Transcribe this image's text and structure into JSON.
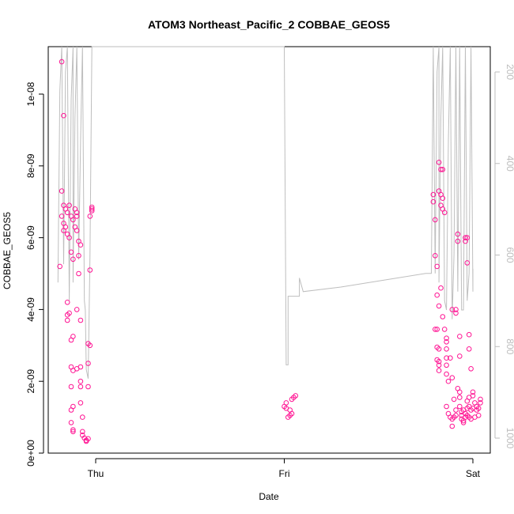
{
  "chart_data": {
    "type": "scatter",
    "title": "ATOM3 Northeast_Pacific_2 COBBAE_GEOS5",
    "xlabel": "Date",
    "ylabel": "COBBAE_GEOS5",
    "x_ticks": [
      "Thu",
      "Fri",
      "Sat"
    ],
    "y_ticks": [
      "0e+00",
      "2e-09",
      "4e-09",
      "6e-09",
      "8e-09",
      "1e-08"
    ],
    "y2_ticks": [
      "200",
      "400",
      "600",
      "800",
      "1000"
    ],
    "xlim_days": [
      -0.2,
      2.0
    ],
    "ylim": [
      0,
      1.13e-08
    ],
    "y2lim": [
      1020,
      140
    ],
    "y2_reversed": true,
    "grid": false,
    "colors": {
      "points": "#ff1493",
      "altitude_line": "#bebebe",
      "right_axis": "#bdbdbd"
    },
    "series": [
      {
        "marker": "open-circle",
        "points": [
          [
            -0.18,
            1.09e-08
          ],
          [
            -0.17,
            9.4e-09
          ],
          [
            -0.18,
            7.3e-09
          ],
          [
            -0.17,
            6.9e-09
          ],
          [
            -0.16,
            6.8e-09
          ],
          [
            -0.15,
            6.7e-09
          ],
          [
            -0.18,
            6.6e-09
          ],
          [
            -0.17,
            6.4e-09
          ],
          [
            -0.16,
            6.3e-09
          ],
          [
            -0.17,
            6.2e-09
          ],
          [
            -0.15,
            6.1e-09
          ],
          [
            -0.14,
            6.9e-09
          ],
          [
            -0.13,
            6.6e-09
          ],
          [
            -0.12,
            6.5e-09
          ],
          [
            -0.14,
            6e-09
          ],
          [
            -0.13,
            5.6e-09
          ],
          [
            -0.12,
            5.4e-09
          ],
          [
            -0.19,
            5.2e-09
          ],
          [
            -0.15,
            4.2e-09
          ],
          [
            -0.15,
            3.85e-09
          ],
          [
            -0.15,
            3.7e-09
          ],
          [
            -0.14,
            3.9e-09
          ],
          [
            -0.13,
            3.15e-09
          ],
          [
            -0.12,
            3.25e-09
          ],
          [
            -0.13,
            2.4e-09
          ],
          [
            -0.12,
            2.3e-09
          ],
          [
            -0.13,
            1.85e-09
          ],
          [
            -0.12,
            1.3e-09
          ],
          [
            -0.13,
            1.2e-09
          ],
          [
            -0.13,
            8.5e-10
          ],
          [
            -0.12,
            6.5e-10
          ],
          [
            -0.12,
            6e-10
          ],
          [
            -0.11,
            6.8e-09
          ],
          [
            -0.1,
            6.7e-09
          ],
          [
            -0.1,
            6.6e-09
          ],
          [
            -0.11,
            6.3e-09
          ],
          [
            -0.1,
            6.2e-09
          ],
          [
            -0.09,
            5.9e-09
          ],
          [
            -0.09,
            5.5e-09
          ],
          [
            -0.09,
            5e-09
          ],
          [
            -0.08,
            5.8e-09
          ],
          [
            -0.1,
            4e-09
          ],
          [
            -0.08,
            3.7e-09
          ],
          [
            -0.1,
            2.35e-09
          ],
          [
            -0.08,
            2.4e-09
          ],
          [
            -0.08,
            2e-09
          ],
          [
            -0.08,
            1.85e-09
          ],
          [
            -0.08,
            1.4e-09
          ],
          [
            -0.07,
            1e-09
          ],
          [
            -0.07,
            6e-10
          ],
          [
            -0.07,
            5e-10
          ],
          [
            -0.06,
            4.2e-10
          ],
          [
            -0.05,
            3.6e-10
          ],
          [
            -0.05,
            3.3e-10
          ],
          [
            -0.04,
            4e-10
          ],
          [
            -0.04,
            2.5e-09
          ],
          [
            -0.03,
            3e-09
          ],
          [
            -0.04,
            3.05e-09
          ],
          [
            -0.04,
            1.85e-09
          ],
          [
            -0.03,
            5.1e-09
          ],
          [
            -0.02,
            6.8e-09
          ],
          [
            -0.02,
            6.85e-09
          ],
          [
            -0.02,
            6.75e-09
          ],
          [
            -0.03,
            6.6e-09
          ],
          [
            1.0,
            1.3e-09
          ],
          [
            1.01,
            1.4e-09
          ],
          [
            1.01,
            1.25e-09
          ],
          [
            1.02,
            1e-09
          ],
          [
            1.03,
            1.05e-09
          ],
          [
            1.04,
            1.1e-09
          ],
          [
            1.04,
            1.5e-09
          ],
          [
            1.05,
            1.55e-09
          ],
          [
            1.06,
            1.6e-09
          ],
          [
            1.03,
            1.2e-09
          ],
          [
            1.79,
            7.2e-09
          ],
          [
            1.79,
            7e-09
          ],
          [
            1.8,
            6.5e-09
          ],
          [
            1.8,
            5.5e-09
          ],
          [
            1.81,
            5.2e-09
          ],
          [
            1.82,
            8.1e-09
          ],
          [
            1.83,
            7.9e-09
          ],
          [
            1.84,
            7.9e-09
          ],
          [
            1.82,
            7.3e-09
          ],
          [
            1.83,
            7.2e-09
          ],
          [
            1.84,
            7.1e-09
          ],
          [
            1.83,
            6.9e-09
          ],
          [
            1.84,
            6.8e-09
          ],
          [
            1.85,
            6.7e-09
          ],
          [
            1.83,
            4.6e-09
          ],
          [
            1.81,
            4.4e-09
          ],
          [
            1.82,
            4.1e-09
          ],
          [
            1.8,
            3.45e-09
          ],
          [
            1.81,
            3.45e-09
          ],
          [
            1.81,
            2.95e-09
          ],
          [
            1.82,
            2.9e-09
          ],
          [
            1.81,
            2.6e-09
          ],
          [
            1.82,
            2.55e-09
          ],
          [
            1.82,
            2.45e-09
          ],
          [
            1.82,
            2.3e-09
          ],
          [
            1.84,
            3.8e-09
          ],
          [
            1.85,
            3.45e-09
          ],
          [
            1.86,
            3.1e-09
          ],
          [
            1.86,
            3.2e-09
          ],
          [
            1.86,
            2.9e-09
          ],
          [
            1.86,
            2.65e-09
          ],
          [
            1.86,
            2.45e-09
          ],
          [
            1.86,
            2.2e-09
          ],
          [
            1.87,
            2e-09
          ],
          [
            1.86,
            1.3e-09
          ],
          [
            1.87,
            1.1e-09
          ],
          [
            1.88,
            1e-09
          ],
          [
            1.89,
            9.5e-10
          ],
          [
            1.89,
            7.5e-10
          ],
          [
            1.9,
            1e-09
          ],
          [
            1.91,
            1.05e-09
          ],
          [
            1.9,
            1.5e-09
          ],
          [
            1.91,
            1.2e-09
          ],
          [
            1.88,
            2.65e-09
          ],
          [
            1.89,
            2.1e-09
          ],
          [
            1.89,
            4e-09
          ],
          [
            1.92,
            1.8e-09
          ],
          [
            1.93,
            1.7e-09
          ],
          [
            1.93,
            1.55e-09
          ],
          [
            1.93,
            1.3e-09
          ],
          [
            1.94,
            1.15e-09
          ],
          [
            1.94,
            9.5e-10
          ],
          [
            1.95,
            9e-10
          ],
          [
            1.95,
            8.5e-10
          ],
          [
            1.94,
            1.05e-09
          ],
          [
            1.96,
            1.1e-09
          ],
          [
            1.96,
            1e-09
          ],
          [
            1.95,
            1.2e-09
          ],
          [
            1.97,
            1.25e-09
          ],
          [
            1.97,
            1.45e-09
          ],
          [
            1.97,
            1.05e-09
          ],
          [
            1.98,
            1e-09
          ],
          [
            1.98,
            1.3e-09
          ],
          [
            1.98,
            1.55e-09
          ],
          [
            1.99,
            1.2e-09
          ],
          [
            1.99,
            9.5e-10
          ],
          [
            1.92,
            6.1e-09
          ],
          [
            1.92,
            5.9e-09
          ],
          [
            1.91,
            4e-09
          ],
          [
            1.91,
            3.9e-09
          ],
          [
            1.93,
            3.25e-09
          ],
          [
            1.93,
            2.7e-09
          ],
          [
            1.96,
            6e-09
          ],
          [
            1.96,
            5.9e-09
          ],
          [
            1.97,
            6e-09
          ],
          [
            1.97,
            5.3e-09
          ],
          [
            1.98,
            3.3e-09
          ],
          [
            1.98,
            2.9e-09
          ],
          [
            1.99,
            2.35e-09
          ],
          [
            2.0,
            1.7e-09
          ],
          [
            2.0,
            1.6e-09
          ],
          [
            2.01,
            1.4e-09
          ],
          [
            2.02,
            1.3e-09
          ],
          [
            2.02,
            1.2e-09
          ],
          [
            2.03,
            1.05e-09
          ],
          [
            2.03,
            1.25e-09
          ],
          [
            2.04,
            1.5e-09
          ],
          [
            2.04,
            1.4e-09
          ],
          [
            2.0,
            1.25e-09
          ],
          [
            2.01,
            1e-09
          ]
        ]
      },
      {
        "name": "",
        "axis": "right",
        "style": "line",
        "points": [
          [
            -0.2,
            660
          ],
          [
            -0.19,
            240
          ],
          [
            -0.18,
            140
          ],
          [
            -0.17,
            620
          ],
          [
            -0.16,
            200
          ],
          [
            -0.15,
            140
          ],
          [
            -0.14,
            700
          ],
          [
            -0.13,
            260
          ],
          [
            -0.12,
            140
          ],
          [
            -0.12,
            660
          ],
          [
            -0.11,
            300
          ],
          [
            -0.1,
            140
          ],
          [
            -0.09,
            610
          ],
          [
            -0.08,
            350
          ],
          [
            -0.07,
            140
          ],
          [
            -0.06,
            700
          ],
          [
            -0.055,
            720
          ],
          [
            -0.05,
            850
          ],
          [
            -0.04,
            870
          ],
          [
            -0.03,
            600
          ],
          [
            -0.02,
            140
          ],
          [
            -0.01,
            140
          ],
          [
            0.4,
            140
          ],
          [
            1.0,
            140
          ],
          [
            1.01,
            840
          ],
          [
            1.02,
            840
          ],
          [
            1.02,
            690
          ],
          [
            1.08,
            690
          ],
          [
            1.08,
            650
          ],
          [
            1.1,
            680
          ],
          [
            1.3,
            670
          ],
          [
            1.6,
            650
          ],
          [
            1.75,
            640
          ],
          [
            1.78,
            640
          ],
          [
            1.79,
            140
          ],
          [
            1.8,
            640
          ],
          [
            1.81,
            200
          ],
          [
            1.82,
            140
          ],
          [
            1.82,
            660
          ],
          [
            1.83,
            300
          ],
          [
            1.84,
            140
          ],
          [
            1.85,
            700
          ],
          [
            1.86,
            720
          ],
          [
            1.87,
            350
          ],
          [
            1.88,
            140
          ],
          [
            1.89,
            740
          ],
          [
            1.9,
            600
          ],
          [
            1.91,
            140
          ],
          [
            1.92,
            680
          ],
          [
            1.93,
            140
          ],
          [
            1.94,
            720
          ],
          [
            1.95,
            720
          ],
          [
            1.96,
            140
          ],
          [
            1.97,
            700
          ],
          [
            1.98,
            640
          ],
          [
            1.99,
            140
          ],
          [
            2.0,
            680
          ],
          [
            2.0,
            630
          ]
        ]
      }
    ]
  }
}
